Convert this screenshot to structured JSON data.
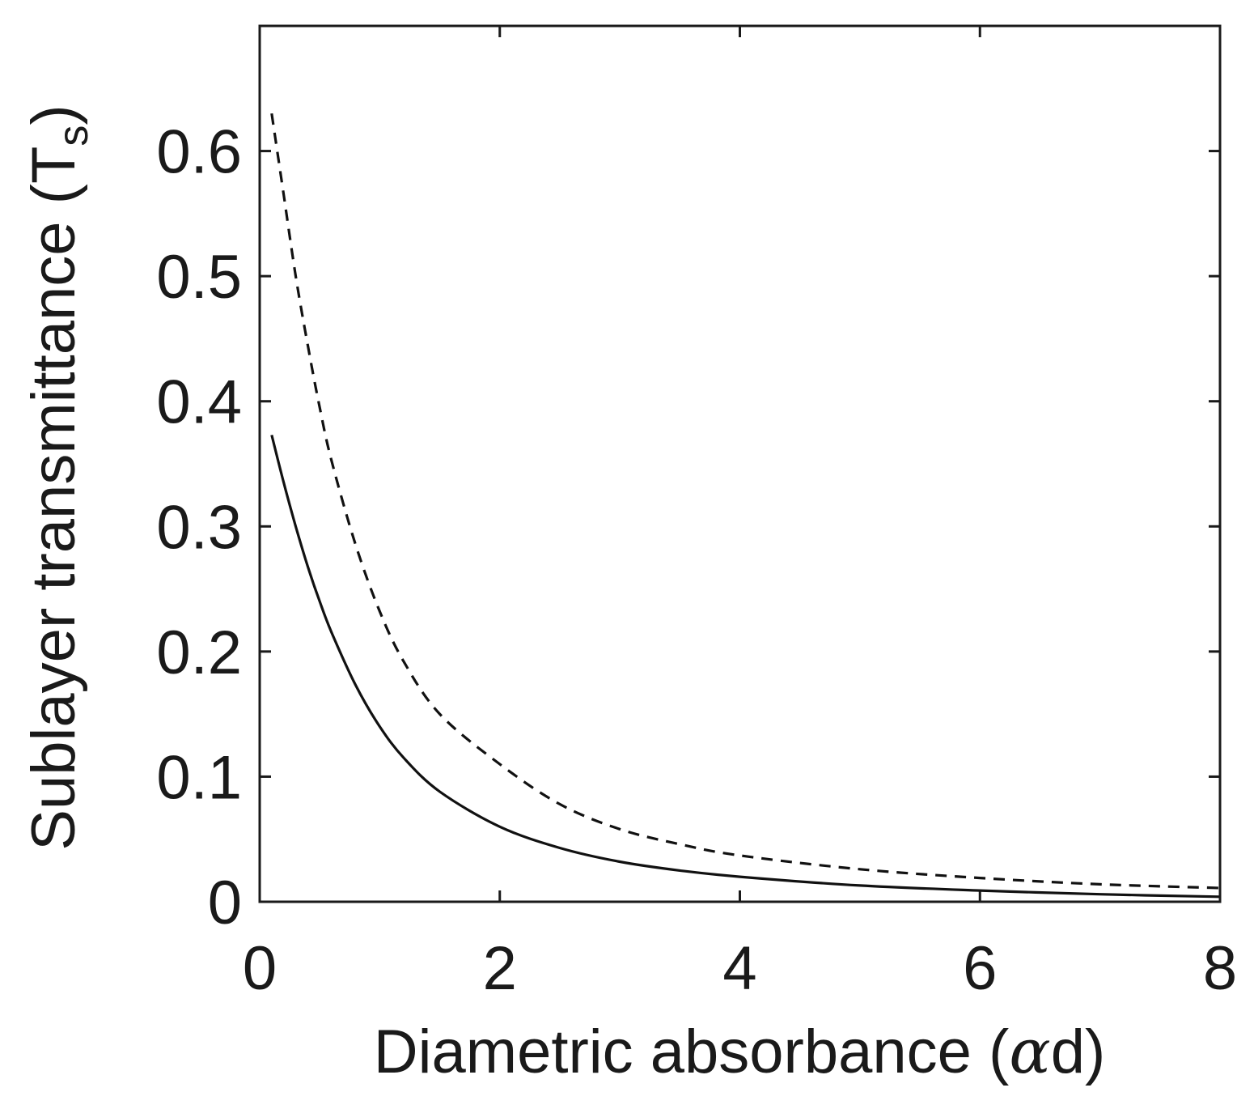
{
  "chart_data": {
    "type": "line",
    "title": "",
    "xlabel": "Diametric absorbance (",
    "xlabel_symbol": "α",
    "xlabel_tail": "d)",
    "ylabel": "Sublayer transmittance (T",
    "ylabel_sub": "s",
    "ylabel_tail": ")",
    "xlim": [
      0,
      8
    ],
    "ylim": [
      0,
      0.7
    ],
    "xticks": [
      0,
      2,
      4,
      6,
      8
    ],
    "xtick_labels": [
      "0",
      "2",
      "4",
      "6",
      "8"
    ],
    "yticks": [
      0,
      0.1,
      0.2,
      0.3,
      0.4,
      0.5,
      0.6
    ],
    "ytick_labels": [
      "0",
      "0.1",
      "0.2",
      "0.3",
      "0.4",
      "0.5",
      "0.6"
    ],
    "grid": false,
    "series": [
      {
        "name": "solid",
        "style": "solid",
        "x": [
          0.1,
          0.2,
          0.3,
          0.4,
          0.5,
          0.6,
          0.8,
          1.0,
          1.2,
          1.5,
          2.0,
          2.5,
          3.0,
          3.5,
          4.0,
          5.0,
          6.0,
          7.0,
          8.0
        ],
        "y": [
          0.373,
          0.335,
          0.3,
          0.268,
          0.24,
          0.215,
          0.173,
          0.14,
          0.115,
          0.088,
          0.06,
          0.043,
          0.032,
          0.025,
          0.02,
          0.013,
          0.009,
          0.006,
          0.004
        ]
      },
      {
        "name": "dashed",
        "style": "dashed",
        "x": [
          0.1,
          0.2,
          0.3,
          0.4,
          0.5,
          0.6,
          0.8,
          1.0,
          1.2,
          1.5,
          2.0,
          2.5,
          3.0,
          3.5,
          4.0,
          5.0,
          6.0,
          7.0,
          8.0
        ],
        "y": [
          0.63,
          0.565,
          0.5,
          0.445,
          0.395,
          0.352,
          0.285,
          0.232,
          0.192,
          0.15,
          0.11,
          0.078,
          0.058,
          0.046,
          0.037,
          0.026,
          0.019,
          0.014,
          0.011
        ]
      }
    ]
  }
}
